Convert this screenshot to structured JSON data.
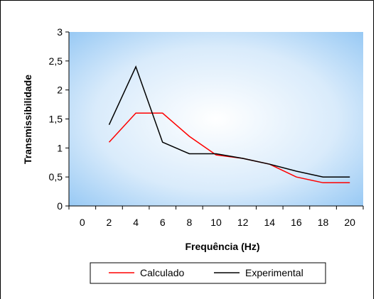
{
  "chart_data": {
    "type": "line",
    "xlabel": "Frequência (Hz)",
    "ylabel": "Transmissibilidade",
    "x_ticks": [
      "0",
      "2",
      "4",
      "6",
      "8",
      "10",
      "12",
      "14",
      "16",
      "18",
      "20"
    ],
    "y_ticks": [
      "0",
      "0,5",
      "1",
      "1,5",
      "2",
      "2,5",
      "3"
    ],
    "xlim": [
      -1,
      21
    ],
    "ylim": [
      0,
      3
    ],
    "grid": false,
    "legend_position": "bottom",
    "plot_background": "radial gradient white center to light blue edges",
    "series": [
      {
        "name": "Calculado",
        "color": "#ff0000",
        "x": [
          2,
          4,
          6,
          8,
          10,
          12,
          14,
          16,
          18,
          20
        ],
        "y": [
          1.1,
          1.6,
          1.6,
          1.2,
          0.88,
          0.82,
          0.72,
          0.5,
          0.4,
          0.4
        ]
      },
      {
        "name": "Experimental",
        "color": "#000000",
        "x": [
          2,
          4,
          6,
          8,
          10,
          12,
          14,
          16,
          18,
          20
        ],
        "y": [
          1.4,
          2.4,
          1.1,
          0.9,
          0.9,
          0.82,
          0.72,
          0.6,
          0.5,
          0.5
        ]
      }
    ]
  }
}
